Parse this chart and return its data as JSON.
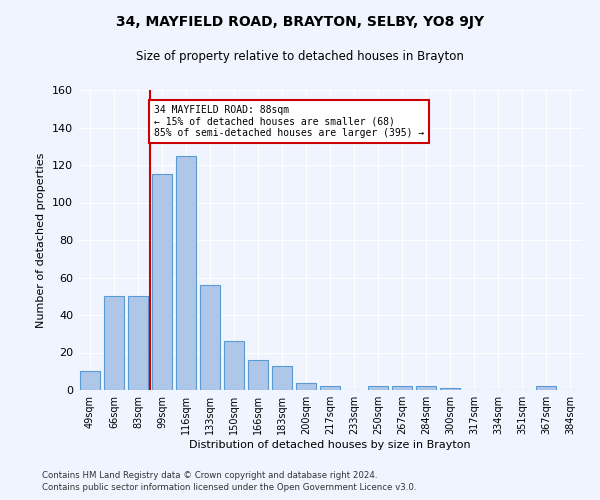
{
  "title": "34, MAYFIELD ROAD, BRAYTON, SELBY, YO8 9JY",
  "subtitle": "Size of property relative to detached houses in Brayton",
  "xlabel": "Distribution of detached houses by size in Brayton",
  "ylabel": "Number of detached properties",
  "footer1": "Contains HM Land Registry data © Crown copyright and database right 2024.",
  "footer2": "Contains public sector information licensed under the Open Government Licence v3.0.",
  "categories": [
    "49sqm",
    "66sqm",
    "83sqm",
    "99sqm",
    "116sqm",
    "133sqm",
    "150sqm",
    "166sqm",
    "183sqm",
    "200sqm",
    "217sqm",
    "233sqm",
    "250sqm",
    "267sqm",
    "284sqm",
    "300sqm",
    "317sqm",
    "334sqm",
    "351sqm",
    "367sqm",
    "384sqm"
  ],
  "values": [
    10,
    50,
    50,
    115,
    125,
    56,
    26,
    16,
    13,
    4,
    2,
    0,
    2,
    2,
    2,
    1,
    0,
    0,
    0,
    2,
    0
  ],
  "bar_color": "#aec6e8",
  "bar_edgecolor": "#5b9bd5",
  "bg_color": "#f0f4ff",
  "grid_color": "#ffffff",
  "property_line_color": "#cc0000",
  "property_line_x": 2.5,
  "annotation_text": "34 MAYFIELD ROAD: 88sqm\n← 15% of detached houses are smaller (68)\n85% of semi-detached houses are larger (395) →",
  "annotation_box_color": "#cc0000",
  "ylim": [
    0,
    160
  ],
  "yticks": [
    0,
    20,
    40,
    60,
    80,
    100,
    120,
    140,
    160
  ]
}
